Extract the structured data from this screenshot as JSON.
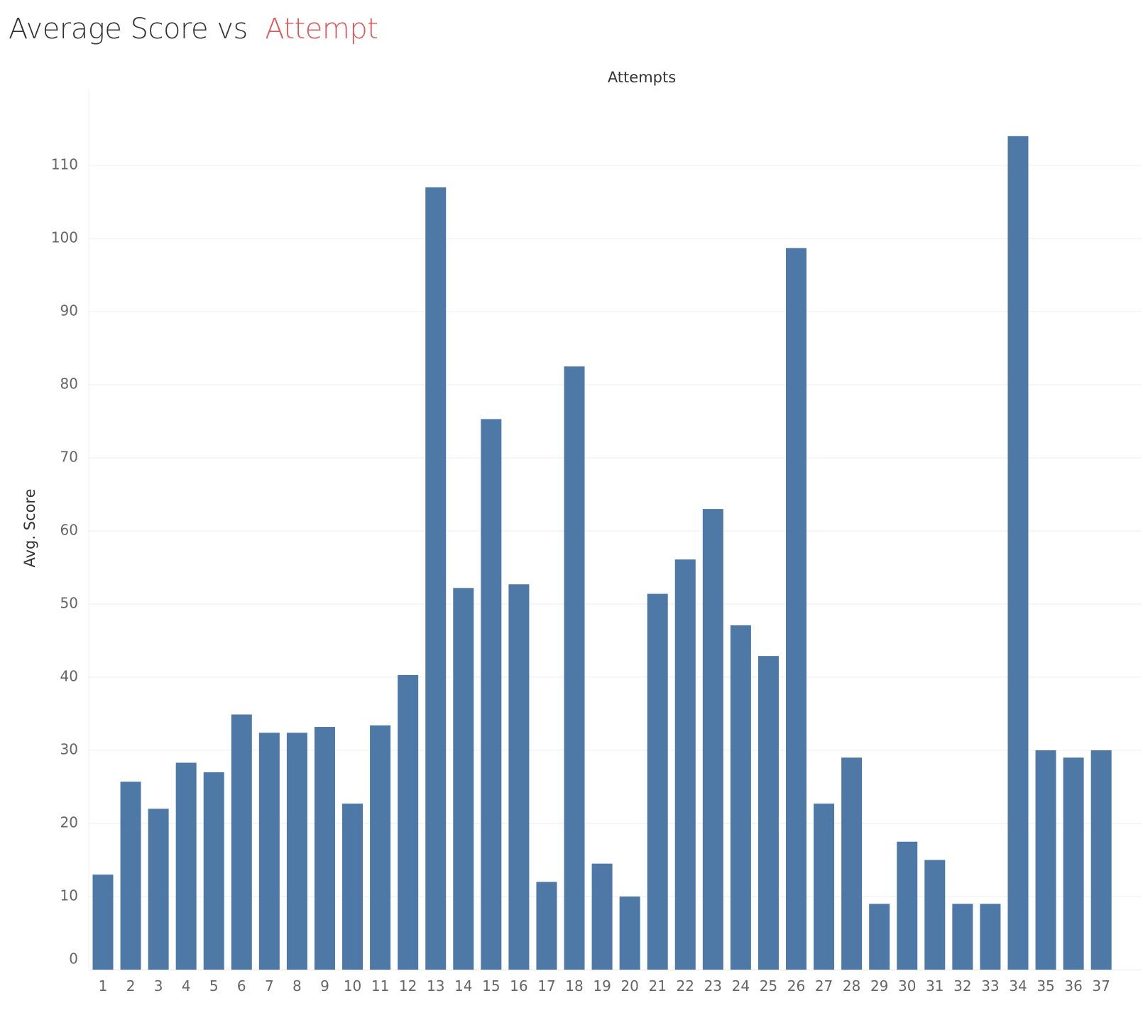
{
  "title": {
    "text": "Average Score vs",
    "accent": "Attempt"
  },
  "colors": {
    "bar": "#4e79a7",
    "accent": "#e15759",
    "grid": "#ececec"
  },
  "chart_data": {
    "type": "bar",
    "xlabel": "Attempts",
    "ylabel": "Avg. Score",
    "ylim": [
      0,
      120
    ],
    "yticks": [
      0,
      10,
      20,
      30,
      40,
      50,
      60,
      70,
      80,
      90,
      100,
      110
    ],
    "grid": true,
    "categories": [
      "1",
      "2",
      "3",
      "4",
      "5",
      "6",
      "7",
      "8",
      "9",
      "10",
      "11",
      "12",
      "13",
      "14",
      "15",
      "16",
      "17",
      "18",
      "19",
      "20",
      "21",
      "22",
      "23",
      "24",
      "25",
      "26",
      "27",
      "28",
      "29",
      "30",
      "31",
      "32",
      "33",
      "34",
      "35",
      "36",
      "37"
    ],
    "values": [
      13,
      25.7,
      22,
      28.3,
      27,
      34.9,
      32.4,
      32.4,
      33.2,
      22.7,
      33.4,
      40.3,
      107,
      52.2,
      75.3,
      52.7,
      12,
      82.5,
      14.5,
      10,
      51.4,
      56.1,
      63,
      47.1,
      42.9,
      98.7,
      22.7,
      29,
      9,
      17.5,
      15,
      9,
      9,
      114,
      30,
      29,
      30
    ]
  }
}
